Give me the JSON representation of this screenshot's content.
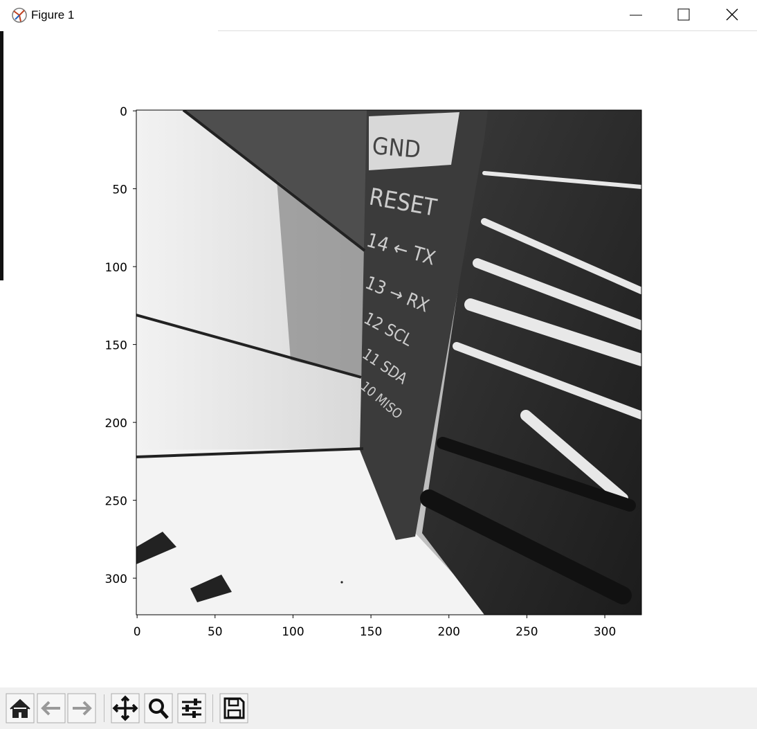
{
  "window": {
    "title": "Figure 1"
  },
  "chart_data": {
    "type": "image",
    "xlim": [
      -0.5,
      323.5
    ],
    "ylim": [
      323.5,
      -0.5
    ],
    "xticks": [
      0,
      50,
      100,
      150,
      200,
      250,
      300
    ],
    "yticks": [
      0,
      50,
      100,
      150,
      200,
      250,
      300
    ],
    "annotations": [
      "GND",
      "RESET",
      "14 ← TX",
      "13 → RX",
      "12 SCL",
      "11 SDA",
      "10 MISO"
    ]
  }
}
